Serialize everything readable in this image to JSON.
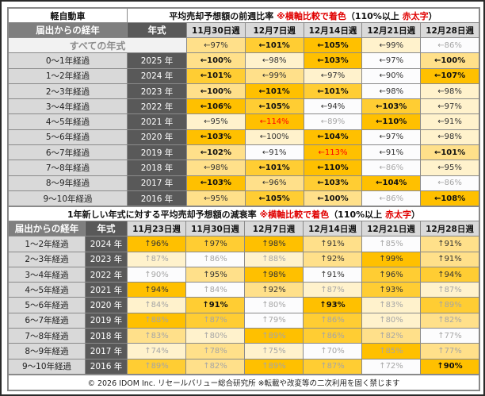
{
  "top": {
    "corner": "軽自動車",
    "title": {
      "main": "平均売却予想額の前週比率 ",
      "note": "※横軸比較で着色",
      "paren_open": "（110%以上 ",
      "bold_red": "赤太字",
      "paren_close": "）"
    },
    "col_label": "届出からの経年",
    "col_year": "年式",
    "weeks": [
      "11月30日週",
      "12月7日週",
      "12月14日週",
      "12月21日週",
      "12月28日週"
    ],
    "all_label": "すべての年式",
    "all_cells": [
      {
        "v": "←97%",
        "l": 2,
        "s": "n"
      },
      {
        "v": "←101%",
        "l": 3,
        "s": "b"
      },
      {
        "v": "←105%",
        "l": 4,
        "s": "b"
      },
      {
        "v": "←99%",
        "l": 1,
        "s": "n"
      },
      {
        "v": "←86%",
        "l": 0,
        "s": "g"
      }
    ],
    "rows": [
      {
        "label": "0～1年経過",
        "year": "2025 年",
        "cells": [
          {
            "v": "←100%",
            "l": 2,
            "s": "b"
          },
          {
            "v": "←98%",
            "l": 1,
            "s": "n"
          },
          {
            "v": "←103%",
            "l": 4,
            "s": "b"
          },
          {
            "v": "←97%",
            "l": 0,
            "s": "n"
          },
          {
            "v": "←100%",
            "l": 2,
            "s": "b"
          }
        ]
      },
      {
        "label": "1～2年経過",
        "year": "2024 年",
        "cells": [
          {
            "v": "←101%",
            "l": 3,
            "s": "b"
          },
          {
            "v": "←99%",
            "l": 2,
            "s": "n"
          },
          {
            "v": "←97%",
            "l": 1,
            "s": "n"
          },
          {
            "v": "←90%",
            "l": 0,
            "s": "n"
          },
          {
            "v": "←107%",
            "l": 4,
            "s": "b"
          }
        ]
      },
      {
        "label": "2～3年経過",
        "year": "2023 年",
        "cells": [
          {
            "v": "←100%",
            "l": 2,
            "s": "b"
          },
          {
            "v": "←101%",
            "l": 4,
            "s": "b"
          },
          {
            "v": "←101%",
            "l": 3,
            "s": "b"
          },
          {
            "v": "←98%",
            "l": 0,
            "s": "n"
          },
          {
            "v": "←98%",
            "l": 1,
            "s": "n"
          }
        ]
      },
      {
        "label": "3～4年経過",
        "year": "2022 年",
        "cells": [
          {
            "v": "←106%",
            "l": 4,
            "s": "b"
          },
          {
            "v": "←105%",
            "l": 3,
            "s": "b"
          },
          {
            "v": "←94%",
            "l": 0,
            "s": "n"
          },
          {
            "v": "←103%",
            "l": 3,
            "s": "b"
          },
          {
            "v": "←97%",
            "l": 1,
            "s": "n"
          }
        ]
      },
      {
        "label": "4～5年経過",
        "year": "2021 年",
        "cells": [
          {
            "v": "←95%",
            "l": 1,
            "s": "n"
          },
          {
            "v": "←114%",
            "l": 4,
            "s": "r"
          },
          {
            "v": "←89%",
            "l": 0,
            "s": "g"
          },
          {
            "v": "←110%",
            "l": 4,
            "s": "b"
          },
          {
            "v": "←91%",
            "l": 1,
            "s": "n"
          }
        ]
      },
      {
        "label": "5～6年経過",
        "year": "2020 年",
        "cells": [
          {
            "v": "←103%",
            "l": 4,
            "s": "b"
          },
          {
            "v": "←100%",
            "l": 1,
            "s": "n"
          },
          {
            "v": "←104%",
            "l": 4,
            "s": "b"
          },
          {
            "v": "←97%",
            "l": 0,
            "s": "n"
          },
          {
            "v": "←98%",
            "l": 1,
            "s": "n"
          }
        ]
      },
      {
        "label": "6～7年経過",
        "year": "2019 年",
        "cells": [
          {
            "v": "←102%",
            "l": 2,
            "s": "b"
          },
          {
            "v": "←91%",
            "l": 0,
            "s": "n"
          },
          {
            "v": "←113%",
            "l": 4,
            "s": "r"
          },
          {
            "v": "←91%",
            "l": 0,
            "s": "n"
          },
          {
            "v": "←101%",
            "l": 2,
            "s": "b"
          }
        ]
      },
      {
        "label": "7～8年経過",
        "year": "2018 年",
        "cells": [
          {
            "v": "←98%",
            "l": 2,
            "s": "n"
          },
          {
            "v": "←101%",
            "l": 3,
            "s": "b"
          },
          {
            "v": "←110%",
            "l": 4,
            "s": "b"
          },
          {
            "v": "←86%",
            "l": 0,
            "s": "g"
          },
          {
            "v": "←95%",
            "l": 1,
            "s": "n"
          }
        ]
      },
      {
        "label": "8～9年経過",
        "year": "2017 年",
        "cells": [
          {
            "v": "←103%",
            "l": 4,
            "s": "b"
          },
          {
            "v": "←96%",
            "l": 2,
            "s": "n"
          },
          {
            "v": "←103%",
            "l": 3,
            "s": "b"
          },
          {
            "v": "←104%",
            "l": 4,
            "s": "b"
          },
          {
            "v": "←86%",
            "l": 0,
            "s": "g"
          }
        ]
      },
      {
        "label": "9～10年経過",
        "year": "2016 年",
        "cells": [
          {
            "v": "←95%",
            "l": 2,
            "s": "n"
          },
          {
            "v": "←105%",
            "l": 3,
            "s": "b"
          },
          {
            "v": "←100%",
            "l": 2,
            "s": "b"
          },
          {
            "v": "←86%",
            "l": 0,
            "s": "g"
          },
          {
            "v": "←108%",
            "l": 4,
            "s": "b"
          }
        ]
      }
    ]
  },
  "bottom": {
    "title": {
      "main": "1年新しい年式に対する平均売却予想額の減衰率 ",
      "note": "※横軸比較で着色",
      "paren_open": "（110%以上 ",
      "bold_red": "赤太字",
      "paren_close": "）"
    },
    "col_label": "届出からの経年",
    "col_year": "年式",
    "weeks": [
      "11月23日週",
      "11月30日週",
      "12月7日週",
      "12月14日週",
      "12月21日週",
      "12月28日週"
    ],
    "rows": [
      {
        "label": "1～2年経過",
        "year": "2024 年",
        "cells": [
          {
            "v": "↑96%",
            "l": 4,
            "s": "n"
          },
          {
            "v": "↑97%",
            "l": 3,
            "s": "n"
          },
          {
            "v": "↑98%",
            "l": 4,
            "s": "n"
          },
          {
            "v": "↑91%",
            "l": 2,
            "s": "n"
          },
          {
            "v": "↑85%",
            "l": 0,
            "s": "g"
          },
          {
            "v": "↑91%",
            "l": 2,
            "s": "n"
          }
        ]
      },
      {
        "label": "2～3年経過",
        "year": "2023 年",
        "cells": [
          {
            "v": "↑87%",
            "l": 1,
            "s": "g"
          },
          {
            "v": "↑86%",
            "l": 0,
            "s": "g"
          },
          {
            "v": "↑88%",
            "l": 1,
            "s": "g"
          },
          {
            "v": "↑92%",
            "l": 2,
            "s": "n"
          },
          {
            "v": "↑99%",
            "l": 4,
            "s": "n"
          },
          {
            "v": "↑91%",
            "l": 2,
            "s": "n"
          }
        ]
      },
      {
        "label": "3～4年経過",
        "year": "2022 年",
        "cells": [
          {
            "v": "↑90%",
            "l": 0,
            "s": "g"
          },
          {
            "v": "↑95%",
            "l": 2,
            "s": "n"
          },
          {
            "v": "↑98%",
            "l": 4,
            "s": "n"
          },
          {
            "v": "↑91%",
            "l": 0,
            "s": "n"
          },
          {
            "v": "↑96%",
            "l": 3,
            "s": "n"
          },
          {
            "v": "↑94%",
            "l": 3,
            "s": "n"
          }
        ]
      },
      {
        "label": "4～5年経過",
        "year": "2021 年",
        "cells": [
          {
            "v": "↑94%",
            "l": 4,
            "s": "n"
          },
          {
            "v": "↑84%",
            "l": 0,
            "s": "g"
          },
          {
            "v": "↑92%",
            "l": 2,
            "s": "n"
          },
          {
            "v": "↑87%",
            "l": 1,
            "s": "g"
          },
          {
            "v": "↑93%",
            "l": 3,
            "s": "n"
          },
          {
            "v": "↑87%",
            "l": 1,
            "s": "g"
          }
        ]
      },
      {
        "label": "5～6年経過",
        "year": "2020 年",
        "cells": [
          {
            "v": "↑84%",
            "l": 1,
            "s": "g"
          },
          {
            "v": "↑91%",
            "l": 3,
            "s": "b"
          },
          {
            "v": "↑80%",
            "l": 0,
            "s": "g"
          },
          {
            "v": "↑93%",
            "l": 4,
            "s": "b"
          },
          {
            "v": "↑83%",
            "l": 1,
            "s": "g"
          },
          {
            "v": "↑89%",
            "l": 3,
            "s": "g"
          }
        ]
      },
      {
        "label": "6～7年経過",
        "year": "2019 年",
        "cells": [
          {
            "v": "↑88%",
            "l": 4,
            "s": "g"
          },
          {
            "v": "↑87%",
            "l": 3,
            "s": "g"
          },
          {
            "v": "↑79%",
            "l": 0,
            "s": "g"
          },
          {
            "v": "↑86%",
            "l": 3,
            "s": "g"
          },
          {
            "v": "↑80%",
            "l": 1,
            "s": "g"
          },
          {
            "v": "↑82%",
            "l": 2,
            "s": "g"
          }
        ]
      },
      {
        "label": "7～8年経過",
        "year": "2018 年",
        "cells": [
          {
            "v": "↑83%",
            "l": 2,
            "s": "g"
          },
          {
            "v": "↑80%",
            "l": 1,
            "s": "g"
          },
          {
            "v": "↑89%",
            "l": 4,
            "s": "g"
          },
          {
            "v": "↑86%",
            "l": 3,
            "s": "g"
          },
          {
            "v": "↑82%",
            "l": 2,
            "s": "g"
          },
          {
            "v": "↑77%",
            "l": 0,
            "s": "g"
          }
        ]
      },
      {
        "label": "8～9年経過",
        "year": "2017 年",
        "cells": [
          {
            "v": "↑74%",
            "l": 1,
            "s": "g"
          },
          {
            "v": "↑78%",
            "l": 2,
            "s": "g"
          },
          {
            "v": "↑75%",
            "l": 1,
            "s": "g"
          },
          {
            "v": "↑70%",
            "l": 0,
            "s": "g"
          },
          {
            "v": "↑85%",
            "l": 4,
            "s": "g"
          },
          {
            "v": "↑77%",
            "l": 2,
            "s": "g"
          }
        ]
      },
      {
        "label": "9～10年経過",
        "year": "2016 年",
        "cells": [
          {
            "v": "↑89%",
            "l": 3,
            "s": "g"
          },
          {
            "v": "↑82%",
            "l": 2,
            "s": "g"
          },
          {
            "v": "↑89%",
            "l": 4,
            "s": "g"
          },
          {
            "v": "↑87%",
            "l": 3,
            "s": "g"
          },
          {
            "v": "↑72%",
            "l": 0,
            "s": "g"
          },
          {
            "v": "↑90%",
            "l": 4,
            "s": "b"
          }
        ]
      }
    ],
    "footer": "© 2026 IDOM Inc. リセールバリュー総合研究所 ※転載や改変等の二次利用を固く禁じます"
  }
}
